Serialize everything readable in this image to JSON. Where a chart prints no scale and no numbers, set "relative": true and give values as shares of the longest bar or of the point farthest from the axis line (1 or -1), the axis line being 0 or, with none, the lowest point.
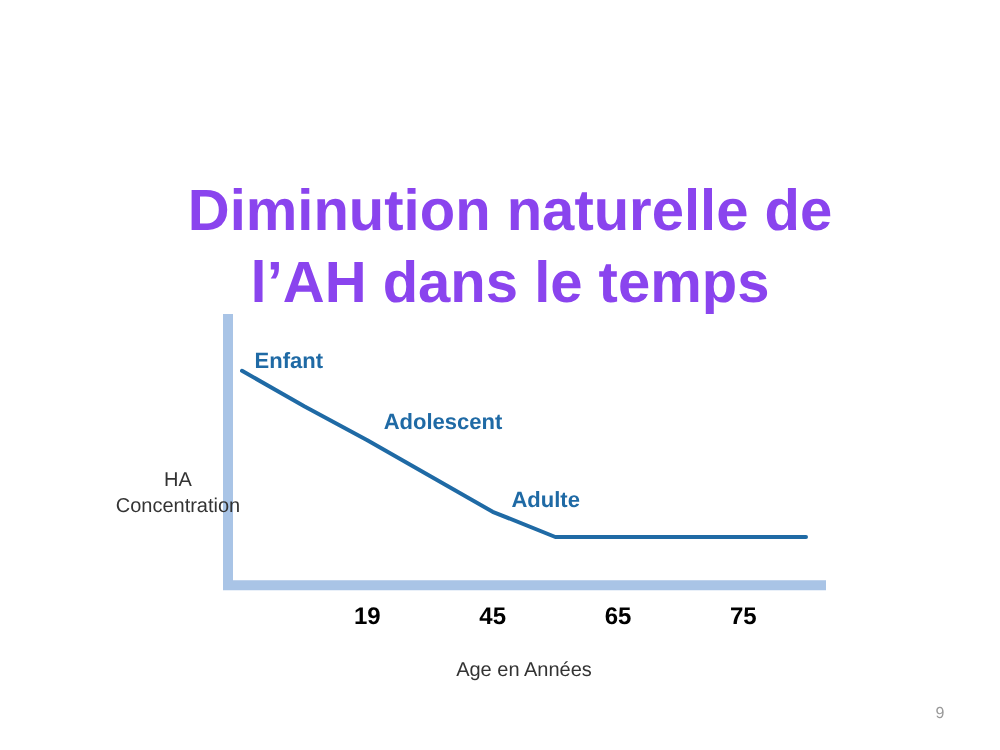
{
  "chart_data": {
    "type": "line",
    "title": "Diminution naturelle de l’AH dans le temps",
    "xlabel": "Age en Années",
    "ylabel": "HA Concentration",
    "categories": [
      null,
      null,
      "19",
      null,
      "45",
      null,
      "65",
      null,
      "75",
      null
    ],
    "series": [
      {
        "color": "#1f6aa5",
        "values": [
          1,
          0.83,
          0.67,
          0.5,
          0.33,
          0.21,
          0.21,
          0.21,
          0.21,
          0.21
        ]
      }
    ],
    "relative": true,
    "grid": false,
    "legend": false,
    "marker": "none",
    "line_style": "solid",
    "annotations": [
      "Enfant",
      "Adolescent",
      "Adulte",
      "9"
    ]
  }
}
